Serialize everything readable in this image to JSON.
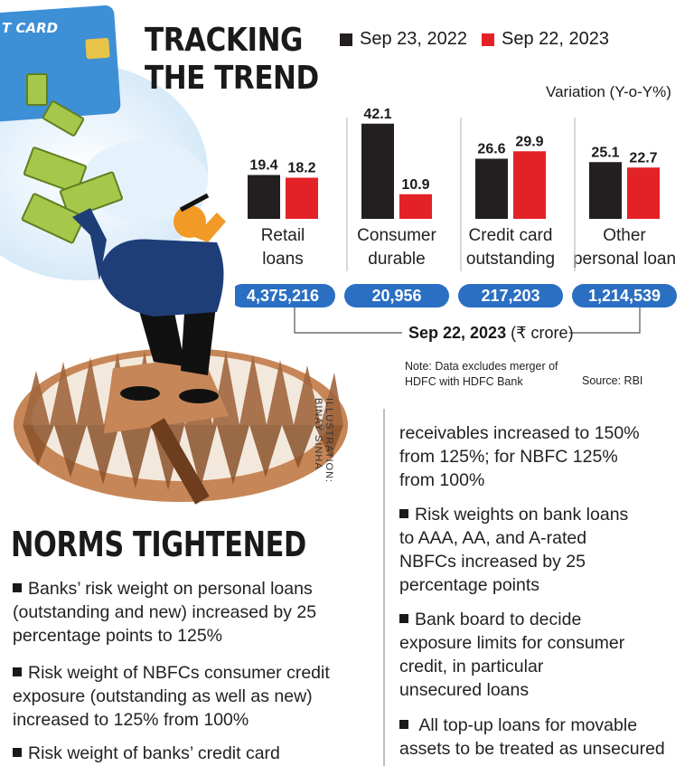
{
  "illustration": {
    "card_text": "T CARD",
    "credit_line1": "ILLUSTRATION:",
    "credit_line2": "BINAY SINHA"
  },
  "title": {
    "line1": "TRACKING",
    "line2": "THE TREND"
  },
  "legend": [
    {
      "label": "Sep 23, 2022",
      "color": "#231f20"
    },
    {
      "label": "Sep 22, 2023",
      "color": "#e32227"
    }
  ],
  "variation_label": "Variation (Y-o-Y%)",
  "chart_data": {
    "type": "bar",
    "categories": [
      [
        "Retail",
        "loans"
      ],
      [
        "Consumer",
        "durable"
      ],
      [
        "Credit card",
        "outstanding"
      ],
      [
        "Other",
        "personal loan"
      ]
    ],
    "series": [
      {
        "name": "Sep 23, 2022",
        "values": [
          19.4,
          42.1,
          26.6,
          25.1
        ],
        "color": "#231f20"
      },
      {
        "name": "Sep 22, 2023",
        "values": [
          18.2,
          10.9,
          29.9,
          22.7
        ],
        "color": "#e32227"
      }
    ],
    "outstanding_values": [
      "4,375,216",
      "20,956",
      "217,203",
      "1,214,539"
    ],
    "outstanding_label": "Sep 22, 2023",
    "outstanding_unit": "(₹ crore)",
    "ylabel": "Variation (Y-o-Y%)"
  },
  "note": {
    "line1": "Note: Data excludes merger of",
    "line2": "HDFC with HDFC Bank",
    "source": "Source: RBI"
  },
  "norms": {
    "title": "NORMS TIGHTENED",
    "left_bullets": [
      [
        "Banks’ risk weight on personal loans",
        "(outstanding and new) increased by 25",
        "percentage points to 125%"
      ],
      [
        "Risk weight of NBFCs consumer credit",
        "exposure (outstanding as well as new)",
        "increased to 125% from 100%"
      ],
      [
        "Risk weight of banks’ credit card"
      ]
    ],
    "right_continuation": [
      "receivables increased to 150%",
      "from 125%; for NBFC 125%",
      "from 100%"
    ],
    "right_bullets": [
      [
        "Risk weights on bank loans",
        "to AAA, AA, and A-rated",
        "NBFCs increased by 25",
        "percentage points"
      ],
      [
        "Bank board to decide",
        "exposure limits for consumer",
        "credit, in particular",
        "unsecured loans"
      ],
      [
        " All top-up loans for movable",
        "assets to be treated as unsecured"
      ]
    ]
  }
}
